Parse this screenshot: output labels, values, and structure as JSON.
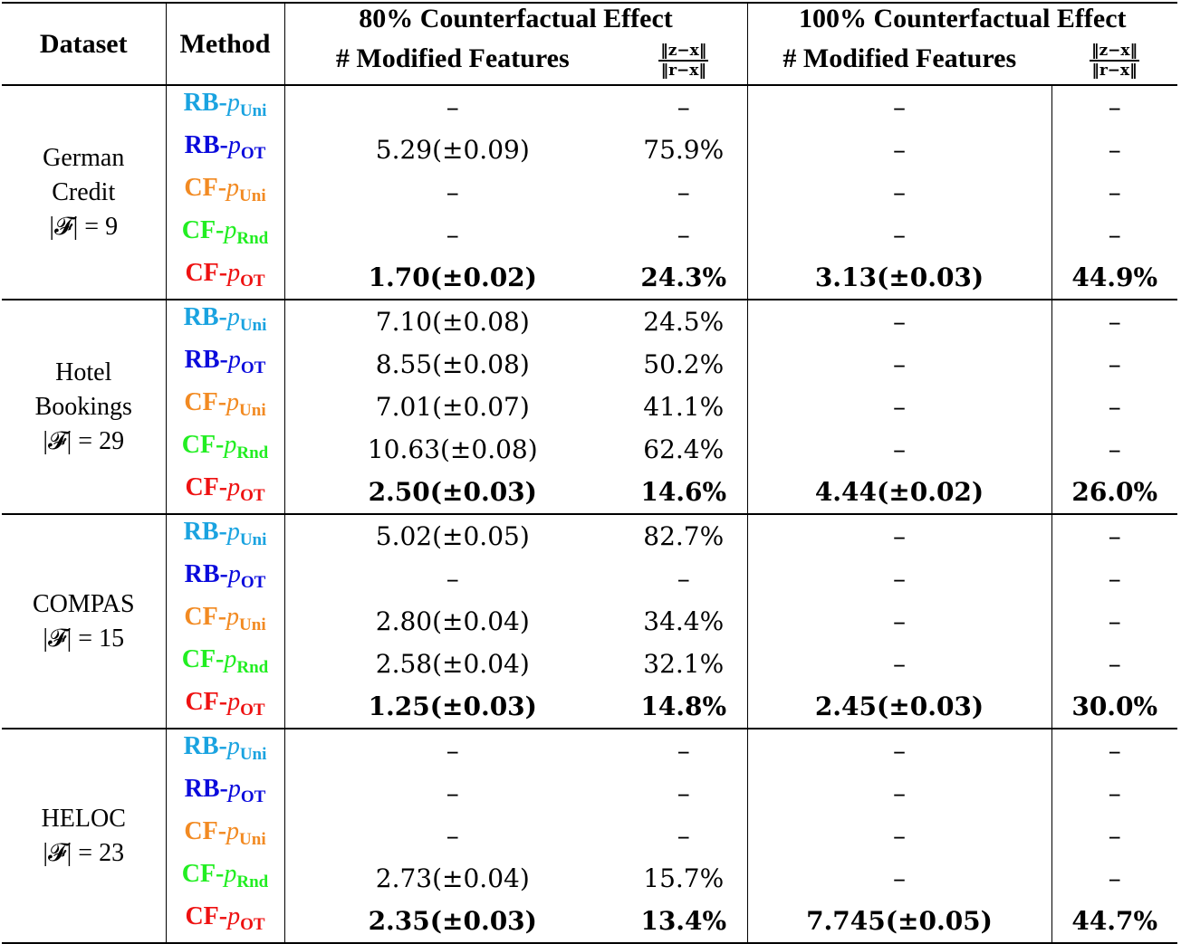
{
  "table": {
    "headers": {
      "dataset": "Dataset",
      "method": "Method",
      "group_80": "80% Counterfactual Effect",
      "group_100": "100% Counterfactual Effect",
      "modified_features": "# Modified Features",
      "ratio_numerator": "‖z−x‖",
      "ratio_denominator": "‖r−x‖"
    },
    "method_colors": {
      "RB-pUni": "#1aa3e0",
      "RB-pOT": "#0a0adc",
      "CF-pUni": "#f28a22",
      "CF-pRnd": "#22ee22",
      "CF-pOT": "#ee1111"
    },
    "groups": [
      {
        "dataset_line1": "German",
        "dataset_line2": "Credit",
        "features": "|𝓕| = 9",
        "rows": [
          {
            "prefix": "RB-",
            "sub": "Uni",
            "color_key": "RB-pUni",
            "m80": "–",
            "r80": "–",
            "m100": "–",
            "r100": "–",
            "bold": false
          },
          {
            "prefix": "RB-",
            "sub": "OT",
            "color_key": "RB-pOT",
            "m80": "5.29(±0.09)",
            "r80": "75.9%",
            "m100": "–",
            "r100": "–",
            "bold": false
          },
          {
            "prefix": "CF-",
            "sub": "Uni",
            "color_key": "CF-pUni",
            "m80": "–",
            "r80": "–",
            "m100": "–",
            "r100": "–",
            "bold": false
          },
          {
            "prefix": "CF-",
            "sub": "Rnd",
            "color_key": "CF-pRnd",
            "m80": "–",
            "r80": "–",
            "m100": "–",
            "r100": "–",
            "bold": false
          },
          {
            "prefix": "CF-",
            "sub": "OT",
            "color_key": "CF-pOT",
            "m80": "1.70(±0.02)",
            "r80": "24.3%",
            "m100": "3.13(±0.03)",
            "r100": "44.9%",
            "bold": true
          }
        ]
      },
      {
        "dataset_line1": "Hotel",
        "dataset_line2": "Bookings",
        "features": "|𝓕| = 29",
        "rows": [
          {
            "prefix": "RB-",
            "sub": "Uni",
            "color_key": "RB-pUni",
            "m80": "7.10(±0.08)",
            "r80": "24.5%",
            "m100": "–",
            "r100": "–",
            "bold": false
          },
          {
            "prefix": "RB-",
            "sub": "OT",
            "color_key": "RB-pOT",
            "m80": "8.55(±0.08)",
            "r80": "50.2%",
            "m100": "–",
            "r100": "–",
            "bold": false
          },
          {
            "prefix": "CF-",
            "sub": "Uni",
            "color_key": "CF-pUni",
            "m80": "7.01(±0.07)",
            "r80": "41.1%",
            "m100": "–",
            "r100": "–",
            "bold": false
          },
          {
            "prefix": "CF-",
            "sub": "Rnd",
            "color_key": "CF-pRnd",
            "m80": "10.63(±0.08)",
            "r80": "62.4%",
            "m100": "–",
            "r100": "–",
            "bold": false
          },
          {
            "prefix": "CF-",
            "sub": "OT",
            "color_key": "CF-pOT",
            "m80": "2.50(±0.03)",
            "r80": "14.6%",
            "m100": "4.44(±0.02)",
            "r100": "26.0%",
            "bold": true
          }
        ]
      },
      {
        "dataset_line1": "COMPAS",
        "dataset_line2": "",
        "features": "|𝓕| = 15",
        "rows": [
          {
            "prefix": "RB-",
            "sub": "Uni",
            "color_key": "RB-pUni",
            "m80": "5.02(±0.05)",
            "r80": "82.7%",
            "m100": "–",
            "r100": "–",
            "bold": false
          },
          {
            "prefix": "RB-",
            "sub": "OT",
            "color_key": "RB-pOT",
            "m80": "–",
            "r80": "–",
            "m100": "–",
            "r100": "–",
            "bold": false
          },
          {
            "prefix": "CF-",
            "sub": "Uni",
            "color_key": "CF-pUni",
            "m80": "2.80(±0.04)",
            "r80": "34.4%",
            "m100": "–",
            "r100": "–",
            "bold": false
          },
          {
            "prefix": "CF-",
            "sub": "Rnd",
            "color_key": "CF-pRnd",
            "m80": "2.58(±0.04)",
            "r80": "32.1%",
            "m100": "–",
            "r100": "–",
            "bold": false
          },
          {
            "prefix": "CF-",
            "sub": "OT",
            "color_key": "CF-pOT",
            "m80": "1.25(±0.03)",
            "r80": "14.8%",
            "m100": "2.45(±0.03)",
            "r100": "30.0%",
            "bold": true
          }
        ]
      },
      {
        "dataset_line1": "HELOC",
        "dataset_line2": "",
        "features": "|𝓕| = 23",
        "rows": [
          {
            "prefix": "RB-",
            "sub": "Uni",
            "color_key": "RB-pUni",
            "m80": "–",
            "r80": "–",
            "m100": "–",
            "r100": "–",
            "bold": false
          },
          {
            "prefix": "RB-",
            "sub": "OT",
            "color_key": "RB-pOT",
            "m80": "–",
            "r80": "–",
            "m100": "–",
            "r100": "–",
            "bold": false
          },
          {
            "prefix": "CF-",
            "sub": "Uni",
            "color_key": "CF-pUni",
            "m80": "–",
            "r80": "–",
            "m100": "–",
            "r100": "–",
            "bold": false
          },
          {
            "prefix": "CF-",
            "sub": "Rnd",
            "color_key": "CF-pRnd",
            "m80": "2.73(±0.04)",
            "r80": "15.7%",
            "m100": "–",
            "r100": "–",
            "bold": false
          },
          {
            "prefix": "CF-",
            "sub": "OT",
            "color_key": "CF-pOT",
            "m80": "2.35(±0.03)",
            "r80": "13.4%",
            "m100": "7.745(±0.05)",
            "r100": "44.7%",
            "bold": true
          }
        ]
      }
    ]
  }
}
